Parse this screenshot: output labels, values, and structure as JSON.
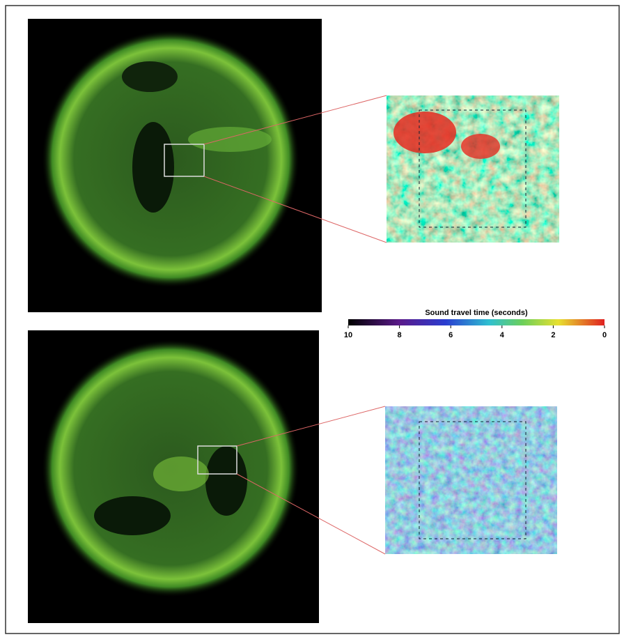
{
  "colorbar": {
    "title": "Sound travel time (seconds)",
    "ticks": [
      10,
      8,
      6,
      4,
      2,
      0
    ]
  }
}
